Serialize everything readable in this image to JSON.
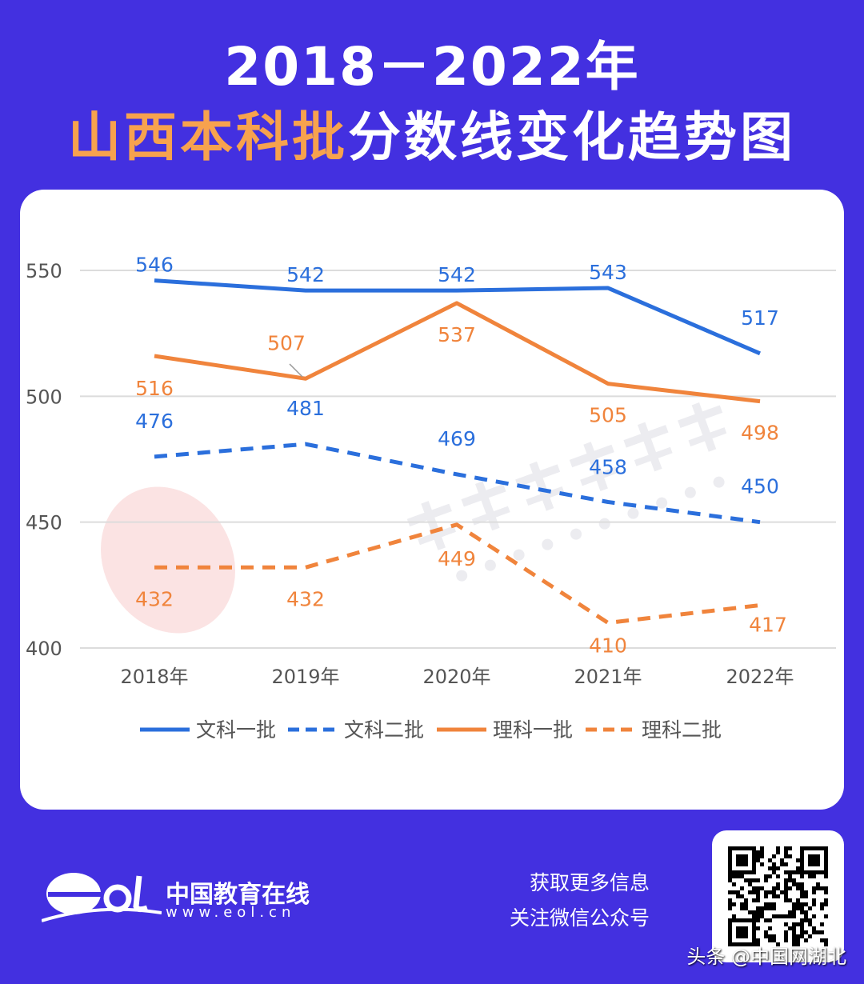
{
  "header": {
    "title_line1": "2018－2022年",
    "title_highlight": "山西本科批",
    "title_rest": "分数线变化趋势图"
  },
  "chart_data": {
    "type": "line",
    "categories": [
      "2018年",
      "2019年",
      "2020年",
      "2021年",
      "2022年"
    ],
    "ylim": [
      400,
      550
    ],
    "yticks": [
      "400",
      "450",
      "500",
      "550"
    ],
    "grid": true,
    "legend_position": "bottom",
    "series": [
      {
        "name": "文科一批",
        "values": [
          546,
          542,
          542,
          543,
          517
        ],
        "color": "#2b6fdc",
        "dashed": false
      },
      {
        "name": "文科二批",
        "values": [
          476,
          481,
          469,
          458,
          450
        ],
        "color": "#2b6fdc",
        "dashed": true
      },
      {
        "name": "理科一批",
        "values": [
          516,
          507,
          537,
          505,
          498
        ],
        "color": "#f0843c",
        "dashed": false
      },
      {
        "name": "理科二批",
        "values": [
          432,
          432,
          449,
          410,
          417
        ],
        "color": "#f0843c",
        "dashed": true
      }
    ]
  },
  "watermark": {
    "text": "中国教育在线",
    "url": "www.eol.cn"
  },
  "footer": {
    "logo_text": "中国教育在线",
    "logo_url": "www.eol.cn",
    "info_line1": "获取更多信息",
    "info_line2": "关注微信公众号",
    "source": "头条 @中国网湖北"
  },
  "colors": {
    "background": "#4330e0",
    "highlight": "#f7a24e"
  }
}
